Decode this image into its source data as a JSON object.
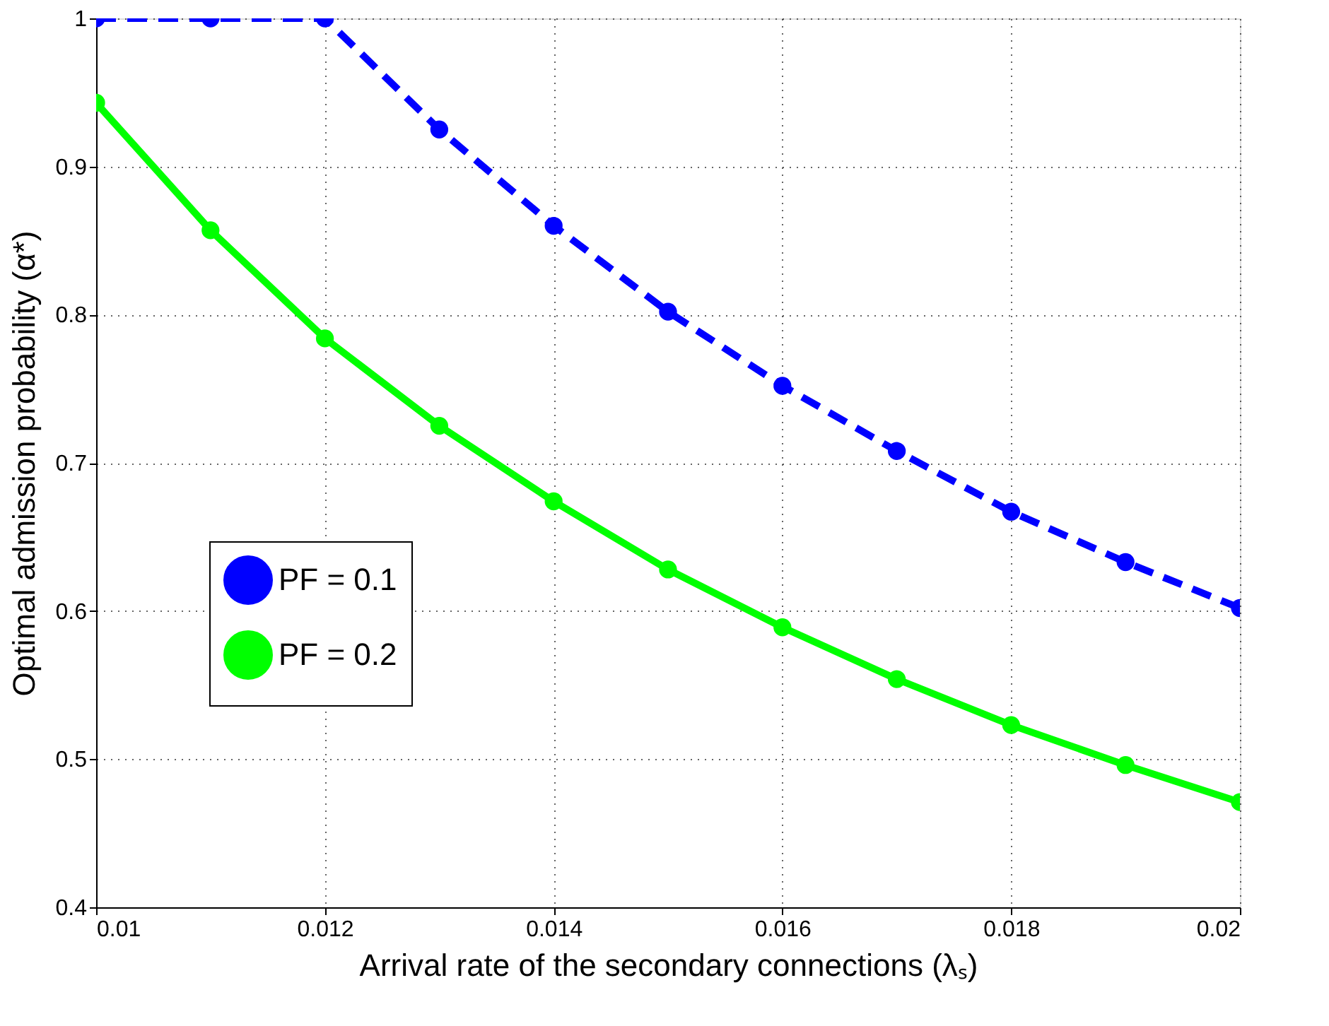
{
  "chart_data": {
    "type": "line",
    "xlabel": "Arrival rate of the secondary connections (λₛ)",
    "ylabel": "Optimal admission probability (α*)",
    "x": [
      0.01,
      0.011,
      0.012,
      0.013,
      0.014,
      0.015,
      0.016,
      0.017,
      0.018,
      0.019,
      0.02
    ],
    "series": [
      {
        "name": "PF = 0.1",
        "color": "#0000ff",
        "line_style": "dashed",
        "marker": "circle",
        "values": [
          1,
          1,
          1,
          0.925,
          0.86,
          0.802,
          0.752,
          0.708,
          0.667,
          0.633,
          0.602
        ]
      },
      {
        "name": "PF = 0.2",
        "color": "#00ff00",
        "line_style": "solid",
        "marker": "circle",
        "values": [
          0.943,
          0.857,
          0.784,
          0.725,
          0.674,
          0.628,
          0.589,
          0.554,
          0.523,
          0.496,
          0.471
        ]
      }
    ],
    "xlim": [
      0.01,
      0.02
    ],
    "xticks": [
      0.01,
      0.012,
      0.014,
      0.016,
      0.018,
      0.02
    ],
    "ylim": [
      0.4,
      1
    ],
    "yticks": [
      0.4,
      0.5,
      0.6,
      0.7,
      0.8,
      0.9,
      1
    ],
    "grid": true,
    "legend": "left"
  }
}
